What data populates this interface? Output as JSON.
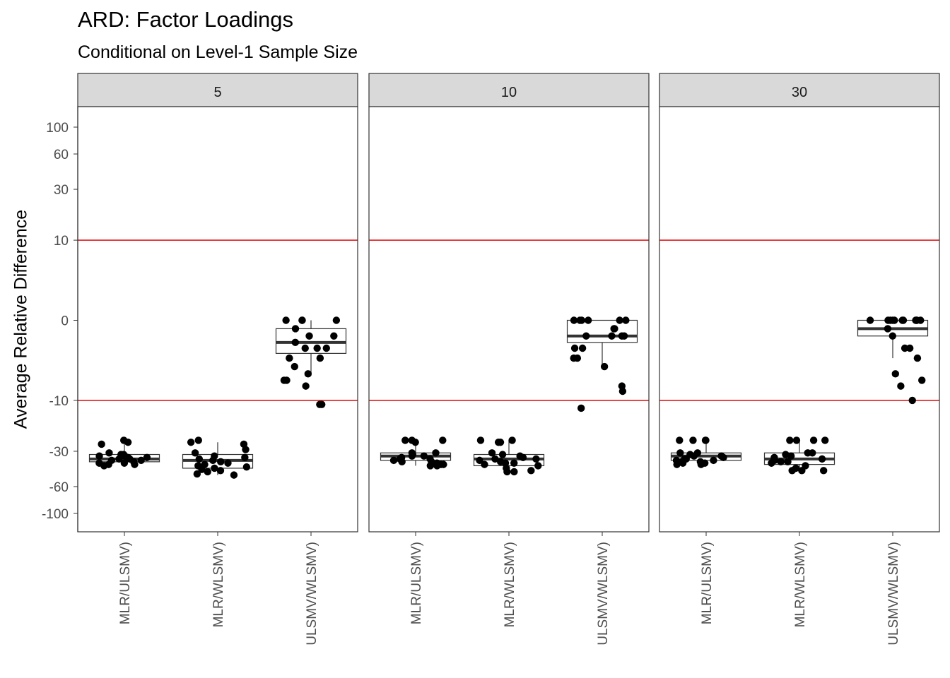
{
  "chart_data": {
    "type": "boxplot",
    "title": "ARD: Factor Loadings",
    "subtitle": "Conditional on Level-1 Sample Size",
    "xlabel": "",
    "ylabel": "Average Relative Difference",
    "ylim": [
      -110,
      110
    ],
    "yticks": [
      100,
      60,
      30,
      10,
      0,
      -10,
      -30,
      -60,
      -100
    ],
    "reference_lines": [
      10,
      -10
    ],
    "reference_line_color": "#e31a1c",
    "categories": [
      "MLR/ULSMV)",
      "MLR/WLSMV)",
      "ULSMV/WLSMV)"
    ],
    "panels": [
      {
        "strip": "5",
        "boxes": [
          {
            "category": "MLR/ULSMV)",
            "q1": -37,
            "median": -35,
            "q3": -32,
            "whisker_low": -40,
            "whisker_high": -25
          },
          {
            "category": "MLR/WLSMV)",
            "q1": -42,
            "median": -36,
            "q3": -32,
            "whisker_low": -48,
            "whisker_high": -25
          },
          {
            "category": "ULSMV/WLSMV)",
            "q1": -2.5,
            "median": -1.5,
            "q3": -0.5,
            "whisker_low": -5,
            "whisker_high": 0
          }
        ],
        "points": [
          {
            "category": "MLR/ULSMV)",
            "values": [
              -24,
              -25,
              -26,
              -31,
              -32,
              -33,
              -33,
              -34,
              -35,
              -35,
              -36,
              -36,
              -37,
              -38,
              -38,
              -39,
              -39,
              -40,
              -34,
              -32
            ]
          },
          {
            "category": "MLR/WLSMV)",
            "values": [
              -24,
              -25,
              -26,
              -29,
              -31,
              -33,
              -34,
              -35,
              -36,
              -37,
              -38,
              -39,
              -40,
              -41,
              -42,
              -43,
              -44,
              -45,
              -47,
              -48
            ]
          },
          {
            "category": "ULSMV/WLSMV)",
            "values": [
              0,
              0,
              0,
              0,
              -0.5,
              -1,
              -1,
              -1.5,
              -2,
              -2,
              -2,
              -3,
              -3,
              -4,
              -5,
              -6,
              -6,
              -7,
              -11,
              -11
            ]
          }
        ]
      },
      {
        "strip": "10",
        "boxes": [
          {
            "category": "MLR/ULSMV)",
            "q1": -36,
            "median": -33,
            "q3": -31,
            "whisker_low": -40,
            "whisker_high": -24
          },
          {
            "category": "MLR/WLSMV)",
            "q1": -40,
            "median": -35,
            "q3": -32,
            "whisker_low": -45,
            "whisker_high": -24
          },
          {
            "category": "ULSMV/WLSMV)",
            "q1": -1.5,
            "median": -1,
            "q3": 0,
            "whisker_low": -4,
            "whisker_high": 0
          }
        ],
        "points": [
          {
            "category": "MLR/ULSMV)",
            "values": [
              -24,
              -24,
              -24,
              -25,
              -31,
              -31,
              -32,
              -33,
              -34,
              -35,
              -35,
              -36,
              -37,
              -37,
              -38,
              -39,
              -39,
              -40,
              -40,
              -33
            ]
          },
          {
            "category": "MLR/WLSMV)",
            "values": [
              -24,
              -24,
              -25,
              -25,
              -31,
              -32,
              -33,
              -34,
              -35,
              -35,
              -36,
              -37,
              -38,
              -38,
              -39,
              -40,
              -42,
              -44,
              -45,
              -45
            ]
          },
          {
            "category": "ULSMV/WLSMV)",
            "values": [
              0,
              0,
              0,
              0,
              0,
              0,
              -0.5,
              -0.5,
              -1,
              -1,
              -1,
              -1,
              -2,
              -2,
              -3,
              -3,
              -4,
              -7,
              -8,
              -12
            ]
          }
        ]
      },
      {
        "strip": "30",
        "boxes": [
          {
            "category": "MLR/ULSMV)",
            "q1": -36,
            "median": -33,
            "q3": -31,
            "whisker_low": -40,
            "whisker_high": -24
          },
          {
            "category": "MLR/WLSMV)",
            "q1": -39,
            "median": -35,
            "q3": -31,
            "whisker_low": -44,
            "whisker_high": -24
          },
          {
            "category": "ULSMV/WLSMV)",
            "q1": -1,
            "median": -0.5,
            "q3": 0,
            "whisker_low": -3,
            "whisker_high": 0
          }
        ],
        "points": [
          {
            "category": "MLR/ULSMV)",
            "values": [
              -24,
              -24,
              -24,
              -24,
              -31,
              -31,
              -32,
              -33,
              -34,
              -35,
              -35,
              -36,
              -36,
              -37,
              -37,
              -38,
              -38,
              -39,
              -39,
              -33
            ]
          },
          {
            "category": "MLR/WLSMV)",
            "values": [
              -24,
              -24,
              -24,
              -24,
              -31,
              -31,
              -32,
              -33,
              -34,
              -35,
              -36,
              -36,
              -37,
              -37,
              -38,
              -40,
              -42,
              -44,
              -44,
              -44
            ]
          },
          {
            "category": "ULSMV/WLSMV)",
            "values": [
              0,
              0,
              0,
              0,
              0,
              0,
              0,
              0,
              0,
              0,
              0,
              -0.5,
              -1,
              -2,
              -2,
              -3,
              -5,
              -6,
              -7,
              -10
            ]
          }
        ]
      }
    ]
  }
}
